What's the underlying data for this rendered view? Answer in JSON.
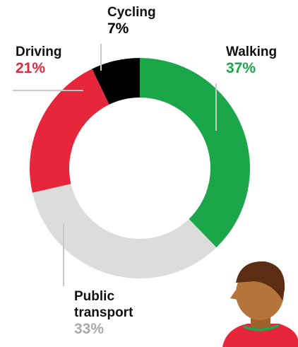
{
  "chart_data": {
    "type": "donut",
    "categories": [
      "Walking",
      "Public transport",
      "Driving",
      "Cycling"
    ],
    "values": [
      37,
      33,
      21,
      7
    ],
    "value_labels": [
      "37%",
      "33%",
      "21%",
      "7%"
    ],
    "colors": [
      "#1ba64a",
      "#dcdcdc",
      "#e6263b",
      "#000000"
    ]
  }
}
